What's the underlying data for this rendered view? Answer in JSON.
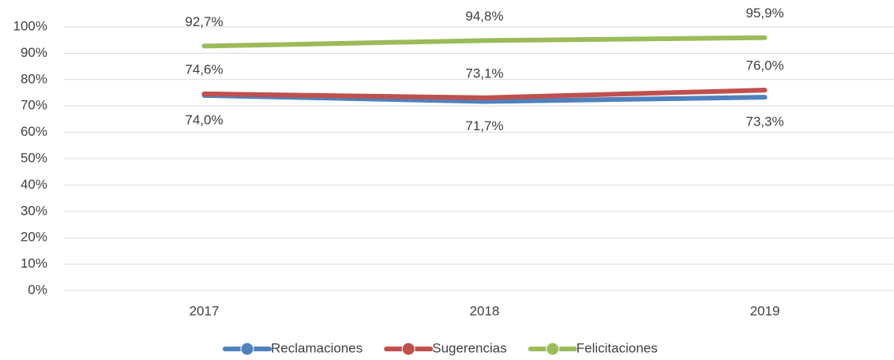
{
  "chart_data": {
    "type": "line",
    "categories": [
      "2017",
      "2018",
      "2019"
    ],
    "series": [
      {
        "name": "Reclamaciones",
        "color": "#4f81bd",
        "values": [
          74.0,
          71.7,
          73.3
        ],
        "value_labels": [
          "74,0%",
          "71,7%",
          "73,3%"
        ]
      },
      {
        "name": "Sugerencias",
        "color": "#c0504d",
        "values": [
          74.6,
          73.1,
          76.0
        ],
        "value_labels": [
          "74,6%",
          "73,1%",
          "76,0%"
        ]
      },
      {
        "name": "Felicitaciones",
        "color": "#9bbb59",
        "values": [
          92.7,
          94.8,
          95.9
        ],
        "value_labels": [
          "92,7%",
          "94,8%",
          "95,9%"
        ]
      }
    ],
    "ylim": [
      0,
      100
    ],
    "yticks": [
      {
        "value": 0,
        "label": "0%"
      },
      {
        "value": 10,
        "label": "10%"
      },
      {
        "value": 20,
        "label": "20%"
      },
      {
        "value": 30,
        "label": "30%"
      },
      {
        "value": 40,
        "label": "40%"
      },
      {
        "value": 50,
        "label": "50%"
      },
      {
        "value": 60,
        "label": "60%"
      },
      {
        "value": 70,
        "label": "70%"
      },
      {
        "value": 80,
        "label": "80%"
      },
      {
        "value": 90,
        "label": "90%"
      },
      {
        "value": 100,
        "label": "100%"
      }
    ],
    "grid": true,
    "legend": "bottom"
  }
}
